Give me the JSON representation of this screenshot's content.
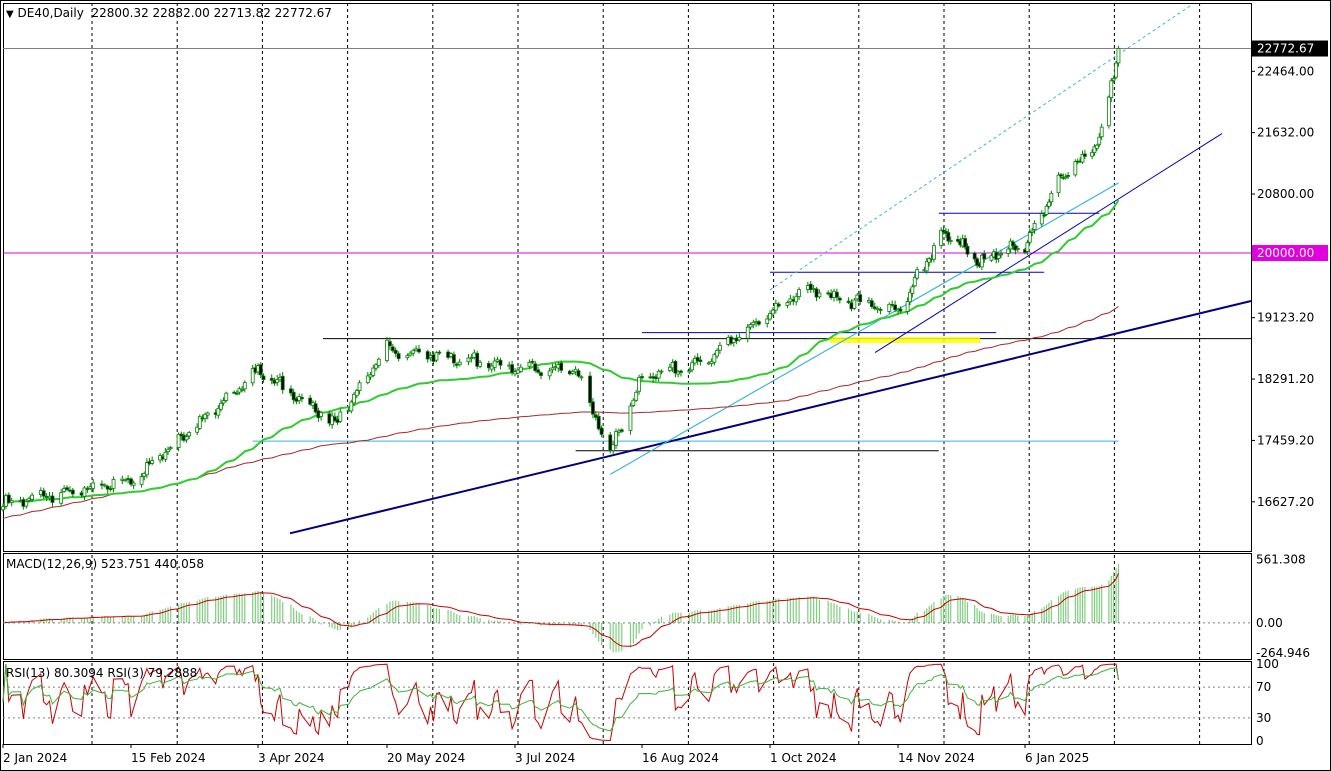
{
  "window": {
    "symbol": "DE40,Daily",
    "ohlc": "22800.32 22882.00 22713.82 22772.67",
    "macd_label": "MACD(12,26,9) 523.751 440.058",
    "rsi_label": "RSI(13) 80.3094 RSI(3) 79.2888"
  },
  "colors": {
    "background": "#ffffff",
    "candle": "#008000",
    "ma_green": "#2ecc2e",
    "ma_brown": "#a52a2a",
    "trend_navy": "#000080",
    "trend_blue": "#0000cd",
    "trend_cyan": "#3cb4dc",
    "level_magenta": "#e000e0",
    "zone_yellow": "#ffff00",
    "macd_hist": "#7fcf7f",
    "macd_signal": "#cc0000",
    "rsi13": "#3cb43c",
    "rsi3": "#cc0000"
  },
  "chart_data": [
    {
      "type": "candlestick",
      "x_labels": [
        "2 Jan 2024",
        "15 Feb 2024",
        "3 Apr 2024",
        "20 May 2024",
        "3 Jul 2024",
        "16 Aug 2024",
        "1 Oct 2024",
        "14 Nov 2024",
        "6 Jan 2025"
      ],
      "y_ticks": [
        22464.0,
        21632.0,
        20800.0,
        19123.2,
        18291.2,
        17459.2,
        16627.2
      ],
      "ylim": [
        15960,
        23390
      ],
      "last_price": "22772.67",
      "level_label": "20000.00",
      "levels": [
        {
          "name": "resistance",
          "value": 20540
        },
        {
          "name": "resistance",
          "value": 19740
        },
        {
          "name": "resistance",
          "value": 18920
        },
        {
          "name": "resistance",
          "value": 18840
        },
        {
          "name": "support",
          "value": 17450
        },
        {
          "name": "support",
          "value": 17320
        }
      ],
      "anchors": {
        "dates": [
          "2 Jan 2024",
          "15 Feb 2024",
          "3 Apr 2024",
          "1 May 2024",
          "20 May 2024",
          "3 Jul 2024",
          "24 Jul 2024",
          "5 Aug 2024",
          "16 Aug 2024",
          "6 Sep 2024",
          "1 Oct 2024",
          "14 Oct 2024",
          "6 Nov 2024",
          "14 Nov 2024",
          "3 Dec 2024",
          "18 Dec 2024",
          "6 Jan 2025",
          "21 Jan 2025",
          "6 Feb 2025",
          "14 Feb 2025"
        ],
        "closes": [
          16600,
          16900,
          18400,
          17700,
          18700,
          18450,
          18400,
          17300,
          18300,
          18500,
          19200,
          19500,
          19300,
          19200,
          20300,
          19900,
          20100,
          21000,
          21500,
          22772.67
        ]
      }
    },
    {
      "type": "macd",
      "params": "12,26,9",
      "macd": 523.751,
      "signal": 440.058,
      "y_ticks": [
        561.308,
        0.0,
        -264.946
      ],
      "ylim": [
        -320,
        620
      ]
    },
    {
      "type": "rsi",
      "series": [
        {
          "name": "RSI(13)",
          "value": 80.3094
        },
        {
          "name": "RSI(3)",
          "value": 79.2888
        }
      ],
      "y_ticks": [
        100,
        70,
        30,
        0
      ],
      "levels": [
        70,
        30
      ],
      "ylim": [
        0,
        100
      ]
    }
  ]
}
